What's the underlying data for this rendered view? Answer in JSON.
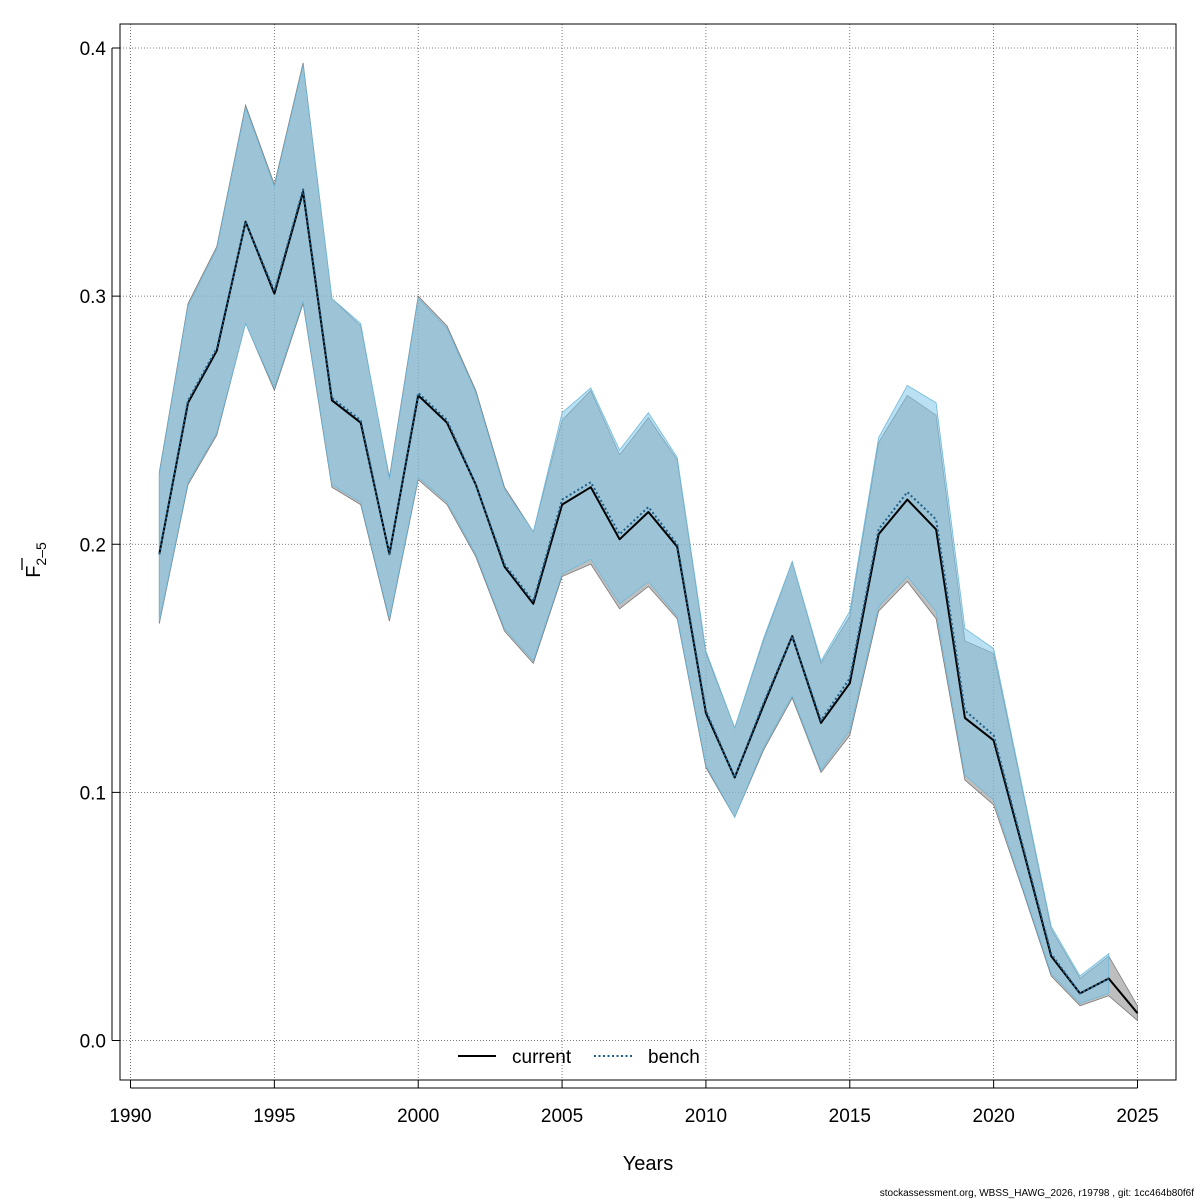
{
  "chart_data": {
    "type": "line",
    "xlabel": "Years",
    "ylabel_main": "F",
    "ylabel_sub": "2–5",
    "xlim": [
      1990,
      2025
    ],
    "ylim": [
      0.0,
      0.4
    ],
    "x_ticks": [
      "1990",
      "1995",
      "2000",
      "2005",
      "2010",
      "2015",
      "2020",
      "2025"
    ],
    "y_ticks": [
      "0.0",
      "0.1",
      "0.2",
      "0.3",
      "0.4"
    ],
    "grid": true,
    "legend_position": "bottom-center",
    "series": [
      {
        "name": "current",
        "line_style": "solid",
        "line_color": "#000000",
        "band_color": "#888888",
        "x": [
          1991,
          1992,
          1993,
          1994,
          1995,
          1996,
          1997,
          1998,
          1999,
          2000,
          2001,
          2002,
          2003,
          2004,
          2005,
          2006,
          2007,
          2008,
          2009,
          2010,
          2011,
          2012,
          2013,
          2014,
          2015,
          2016,
          2017,
          2018,
          2019,
          2020,
          2021,
          2022,
          2023,
          2024,
          2025
        ],
        "values": [
          0.196,
          0.257,
          0.278,
          0.33,
          0.301,
          0.342,
          0.258,
          0.249,
          0.196,
          0.26,
          0.249,
          0.224,
          0.191,
          0.176,
          0.216,
          0.223,
          0.202,
          0.213,
          0.199,
          0.132,
          0.106,
          0.135,
          0.163,
          0.128,
          0.144,
          0.204,
          0.218,
          0.206,
          0.13,
          0.121,
          0.078,
          0.034,
          0.019,
          0.025,
          0.011
        ],
        "lower": [
          0.168,
          0.224,
          0.244,
          0.289,
          0.262,
          0.297,
          0.223,
          0.216,
          0.169,
          0.226,
          0.216,
          0.195,
          0.165,
          0.152,
          0.187,
          0.192,
          0.174,
          0.183,
          0.17,
          0.11,
          0.09,
          0.117,
          0.138,
          0.108,
          0.123,
          0.173,
          0.185,
          0.17,
          0.105,
          0.095,
          0.061,
          0.026,
          0.014,
          0.018,
          0.008
        ],
        "upper": [
          0.229,
          0.297,
          0.32,
          0.377,
          0.345,
          0.394,
          0.299,
          0.288,
          0.227,
          0.3,
          0.288,
          0.262,
          0.223,
          0.205,
          0.25,
          0.262,
          0.236,
          0.251,
          0.234,
          0.156,
          0.126,
          0.161,
          0.193,
          0.152,
          0.171,
          0.241,
          0.26,
          0.252,
          0.161,
          0.156,
          0.101,
          0.045,
          0.025,
          0.034,
          0.014
        ]
      },
      {
        "name": "bench",
        "line_style": "dotted",
        "line_color": "#1f5f8b",
        "band_color": "#7fc8ea",
        "x": [
          1991,
          1992,
          1993,
          1994,
          1995,
          1996,
          1997,
          1998,
          1999,
          2000,
          2001,
          2002,
          2003,
          2004,
          2005,
          2006,
          2007,
          2008,
          2009,
          2010,
          2011,
          2012,
          2013,
          2014,
          2015,
          2016,
          2017,
          2018,
          2019,
          2020,
          2021,
          2022,
          2023,
          2024
        ],
        "values": [
          0.196,
          0.258,
          0.279,
          0.33,
          0.302,
          0.343,
          0.259,
          0.25,
          0.196,
          0.261,
          0.25,
          0.224,
          0.192,
          0.177,
          0.218,
          0.225,
          0.204,
          0.215,
          0.2,
          0.133,
          0.106,
          0.136,
          0.163,
          0.129,
          0.146,
          0.206,
          0.221,
          0.21,
          0.133,
          0.123,
          0.079,
          0.035,
          0.019,
          0.025
        ],
        "lower": [
          0.169,
          0.225,
          0.245,
          0.289,
          0.263,
          0.298,
          0.224,
          0.217,
          0.17,
          0.227,
          0.217,
          0.196,
          0.166,
          0.153,
          0.188,
          0.194,
          0.176,
          0.185,
          0.171,
          0.111,
          0.09,
          0.118,
          0.139,
          0.109,
          0.125,
          0.175,
          0.187,
          0.173,
          0.107,
          0.097,
          0.062,
          0.027,
          0.015,
          0.019
        ],
        "upper": [
          0.228,
          0.296,
          0.319,
          0.376,
          0.344,
          0.393,
          0.299,
          0.289,
          0.226,
          0.299,
          0.287,
          0.261,
          0.222,
          0.205,
          0.253,
          0.263,
          0.238,
          0.253,
          0.235,
          0.157,
          0.126,
          0.162,
          0.193,
          0.153,
          0.173,
          0.243,
          0.264,
          0.257,
          0.166,
          0.158,
          0.102,
          0.046,
          0.026,
          0.035
        ]
      }
    ]
  },
  "footer": "stockassessment.org, WBSS_HAWG_2026, r19798 , git: 1cc464b80f6f"
}
